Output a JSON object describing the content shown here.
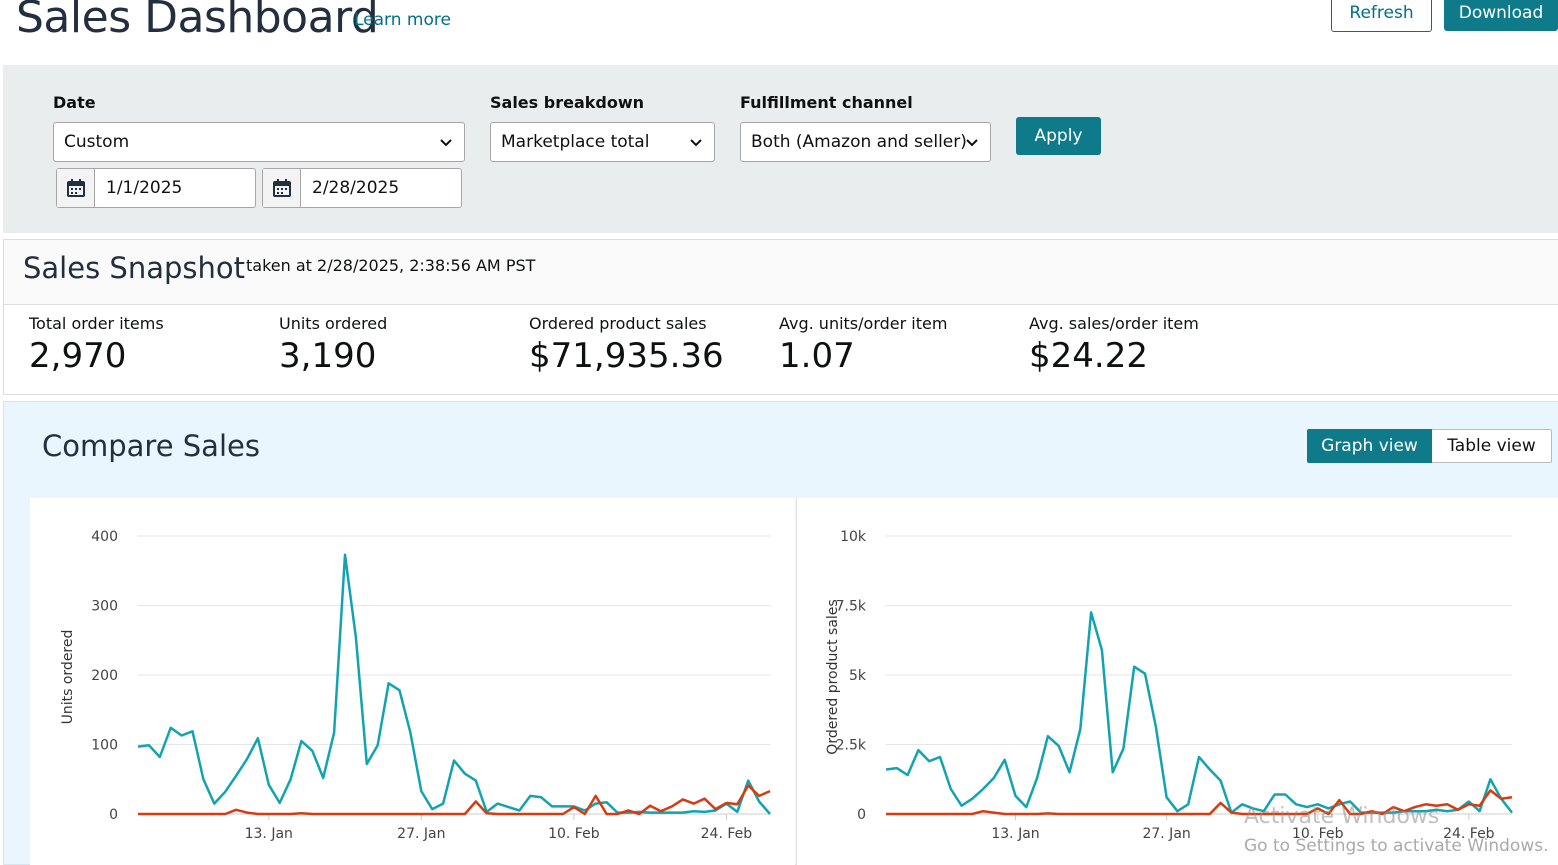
{
  "header": {
    "title": "Sales Dashboard",
    "learn_more": "Learn more",
    "refresh": "Refresh",
    "download": "Download"
  },
  "filters": {
    "date_label": "Date",
    "date_value": "Custom",
    "start_date": "1/1/2025",
    "end_date": "2/28/2025",
    "breakdown_label": "Sales breakdown",
    "breakdown_value": "Marketplace total",
    "channel_label": "Fulfillment channel",
    "channel_value": "Both (Amazon and seller)",
    "apply": "Apply"
  },
  "snapshot": {
    "title": "Sales Snapshot",
    "taken": "taken at 2/28/2025, 2:38:56 AM PST",
    "metrics": [
      {
        "label": "Total order items",
        "value": "2,970"
      },
      {
        "label": "Units ordered",
        "value": "3,190"
      },
      {
        "label": "Ordered product sales",
        "value": "$71,935.36"
      },
      {
        "label": "Avg. units/order item",
        "value": "1.07"
      },
      {
        "label": "Avg. sales/order item",
        "value": "$24.22"
      }
    ]
  },
  "compare": {
    "title": "Compare Sales",
    "graph_view": "Graph view",
    "table_view": "Table view"
  },
  "colors": {
    "accent": "#0f7b8a",
    "series_teal": "#13a3b0",
    "series_red": "#d53c12"
  },
  "watermark": {
    "line1": "Activate Windows",
    "line2": "Go to Settings to activate Windows."
  },
  "chart_data": [
    {
      "type": "line",
      "ylabel": "Units ordered",
      "xlabel": "",
      "ylim": [
        0,
        400
      ],
      "yticks": [
        "0",
        "100",
        "200",
        "300",
        "400"
      ],
      "yticks_values": [
        0,
        100,
        200,
        300,
        400
      ],
      "xticks": [
        "13. Jan",
        "27. Jan",
        "10. Feb",
        "24. Feb"
      ],
      "xticks_day": [
        13,
        27,
        41,
        55
      ],
      "grid": true,
      "series": [
        {
          "color": "#13a3b0",
          "values": [
            97,
            99,
            82,
            124,
            113,
            119,
            50,
            15,
            32,
            55,
            79,
            109,
            42,
            16,
            50,
            105,
            91,
            52,
            117,
            373,
            254,
            72,
            99,
            188,
            178,
            117,
            33,
            7,
            15,
            77,
            58,
            48,
            3,
            15,
            10,
            5,
            26,
            24,
            11,
            11,
            11,
            5,
            15,
            17,
            2,
            2,
            3,
            2,
            2,
            2,
            2,
            4,
            3,
            5,
            15,
            3,
            48,
            18,
            0
          ]
        },
        {
          "color": "#d53c12",
          "values": [
            0,
            0,
            0,
            0,
            0,
            0,
            0,
            0,
            0,
            6,
            2,
            0,
            0,
            0,
            0,
            1,
            0,
            0,
            0,
            0,
            0,
            0,
            0,
            0,
            0,
            0,
            0,
            0,
            0,
            0,
            0,
            18,
            1,
            0,
            0,
            0,
            0,
            0,
            0,
            0,
            10,
            0,
            26,
            0,
            0,
            5,
            0,
            12,
            4,
            11,
            21,
            15,
            22,
            7,
            16,
            14,
            41,
            26,
            33
          ]
        }
      ]
    },
    {
      "type": "line",
      "ylabel": "Ordered product sales",
      "xlabel": "",
      "ylim": [
        0,
        10000
      ],
      "yticks": [
        "0",
        "2.5k",
        "5k",
        "7.5k",
        "10k"
      ],
      "yticks_values": [
        0,
        2500,
        5000,
        7500,
        10000
      ],
      "xticks": [
        "13. Jan",
        "27. Jan",
        "10. Feb",
        "24. Feb"
      ],
      "xticks_day": [
        13,
        27,
        41,
        55
      ],
      "grid": true,
      "series": [
        {
          "color": "#13a3b0",
          "values": [
            1600,
            1650,
            1400,
            2300,
            1900,
            2050,
            900,
            300,
            550,
            900,
            1300,
            1950,
            650,
            250,
            1300,
            2800,
            2450,
            1500,
            3050,
            7250,
            5900,
            1500,
            2350,
            5300,
            5050,
            3150,
            600,
            100,
            350,
            2050,
            1600,
            1200,
            50,
            350,
            200,
            100,
            700,
            700,
            350,
            250,
            350,
            200,
            350,
            450,
            50,
            50,
            50,
            50,
            100,
            100,
            100,
            150,
            100,
            150,
            450,
            100,
            1250,
            550,
            50
          ]
        },
        {
          "color": "#d53c12",
          "values": [
            0,
            0,
            0,
            0,
            0,
            0,
            0,
            0,
            0,
            100,
            50,
            0,
            0,
            0,
            0,
            20,
            0,
            0,
            0,
            0,
            0,
            0,
            0,
            0,
            0,
            0,
            0,
            0,
            0,
            0,
            0,
            400,
            50,
            0,
            0,
            0,
            0,
            0,
            0,
            0,
            200,
            0,
            500,
            0,
            0,
            100,
            0,
            250,
            100,
            250,
            350,
            300,
            350,
            150,
            350,
            300,
            850,
            550,
            600
          ]
        }
      ]
    }
  ]
}
